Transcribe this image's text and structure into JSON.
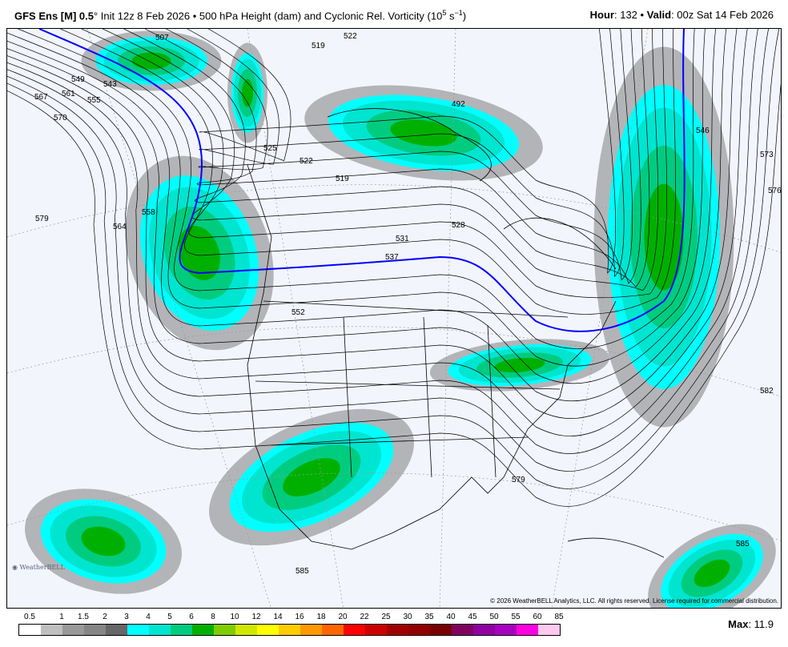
{
  "header": {
    "model": "GFS Ens [M] 0.5",
    "degree": "°",
    "init": " Init 12z 8 Feb 2026 • 500 hPa Height (dam) and Cyclonic Rel. Vorticity (10",
    "exp": "5",
    "unit_tail": " s",
    "unit_exp": "−1",
    "close": ")",
    "hour_label": "Hour",
    "hour": ": 132 • ",
    "valid_label": "Valid",
    "valid": ": 00z Sat 14 Feb 2026"
  },
  "map": {
    "background": "#f3f5fd",
    "highlight_contour_color": "#0000ff",
    "contour_labels": [
      "507",
      "519",
      "522",
      "549",
      "543",
      "567",
      "561",
      "555",
      "570",
      "579",
      "564",
      "558",
      "525",
      "522",
      "519",
      "528",
      "531",
      "537",
      "552",
      "492",
      "546",
      "573",
      "576",
      "582",
      "579",
      "585",
      "585"
    ],
    "copyright": "© 2026 WeatherBELL Analytics, LLC. All rights reserved. License required for commercial distribution.",
    "logo": "WeatherBELL"
  },
  "colorbar": {
    "labels": [
      "0.5",
      "1",
      "1.5",
      "2",
      "3",
      "4",
      "5",
      "6",
      "8",
      "10",
      "12",
      "14",
      "16",
      "18",
      "20",
      "22",
      "25",
      "30",
      "35",
      "40",
      "45",
      "50",
      "55",
      "60",
      "85"
    ],
    "colors": [
      "#ffffff",
      "#bfbfbf",
      "#999999",
      "#858585",
      "#666666",
      "#00ffff",
      "#00e5d0",
      "#00cc80",
      "#00b000",
      "#80cc00",
      "#d0e800",
      "#ffff00",
      "#ffcc00",
      "#ff9900",
      "#ff6600",
      "#ff0000",
      "#cc0000",
      "#a00000",
      "#900000",
      "#780000",
      "#800060",
      "#9000a0",
      "#a800c0",
      "#ff00e0",
      "#ffc8f0"
    ]
  },
  "max": {
    "label": "Max",
    "value": ": 11.9"
  }
}
